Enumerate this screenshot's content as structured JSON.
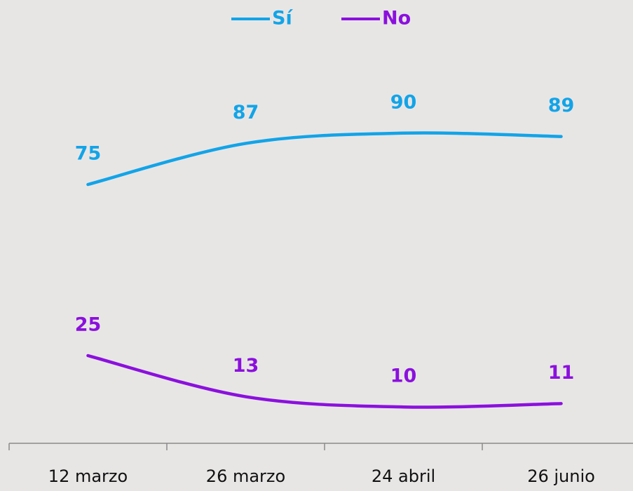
{
  "chart_data": {
    "type": "line",
    "categories": [
      "12 marzo",
      "26 marzo",
      "24 abril",
      "26 junio"
    ],
    "series": [
      {
        "name": "Sí",
        "color": "#12a4e8",
        "values": [
          75,
          87,
          90,
          89
        ]
      },
      {
        "name": "No",
        "color": "#8b10dd",
        "values": [
          25,
          13,
          10,
          11
        ]
      }
    ],
    "ylim": [
      0,
      100
    ],
    "legend": "top"
  }
}
